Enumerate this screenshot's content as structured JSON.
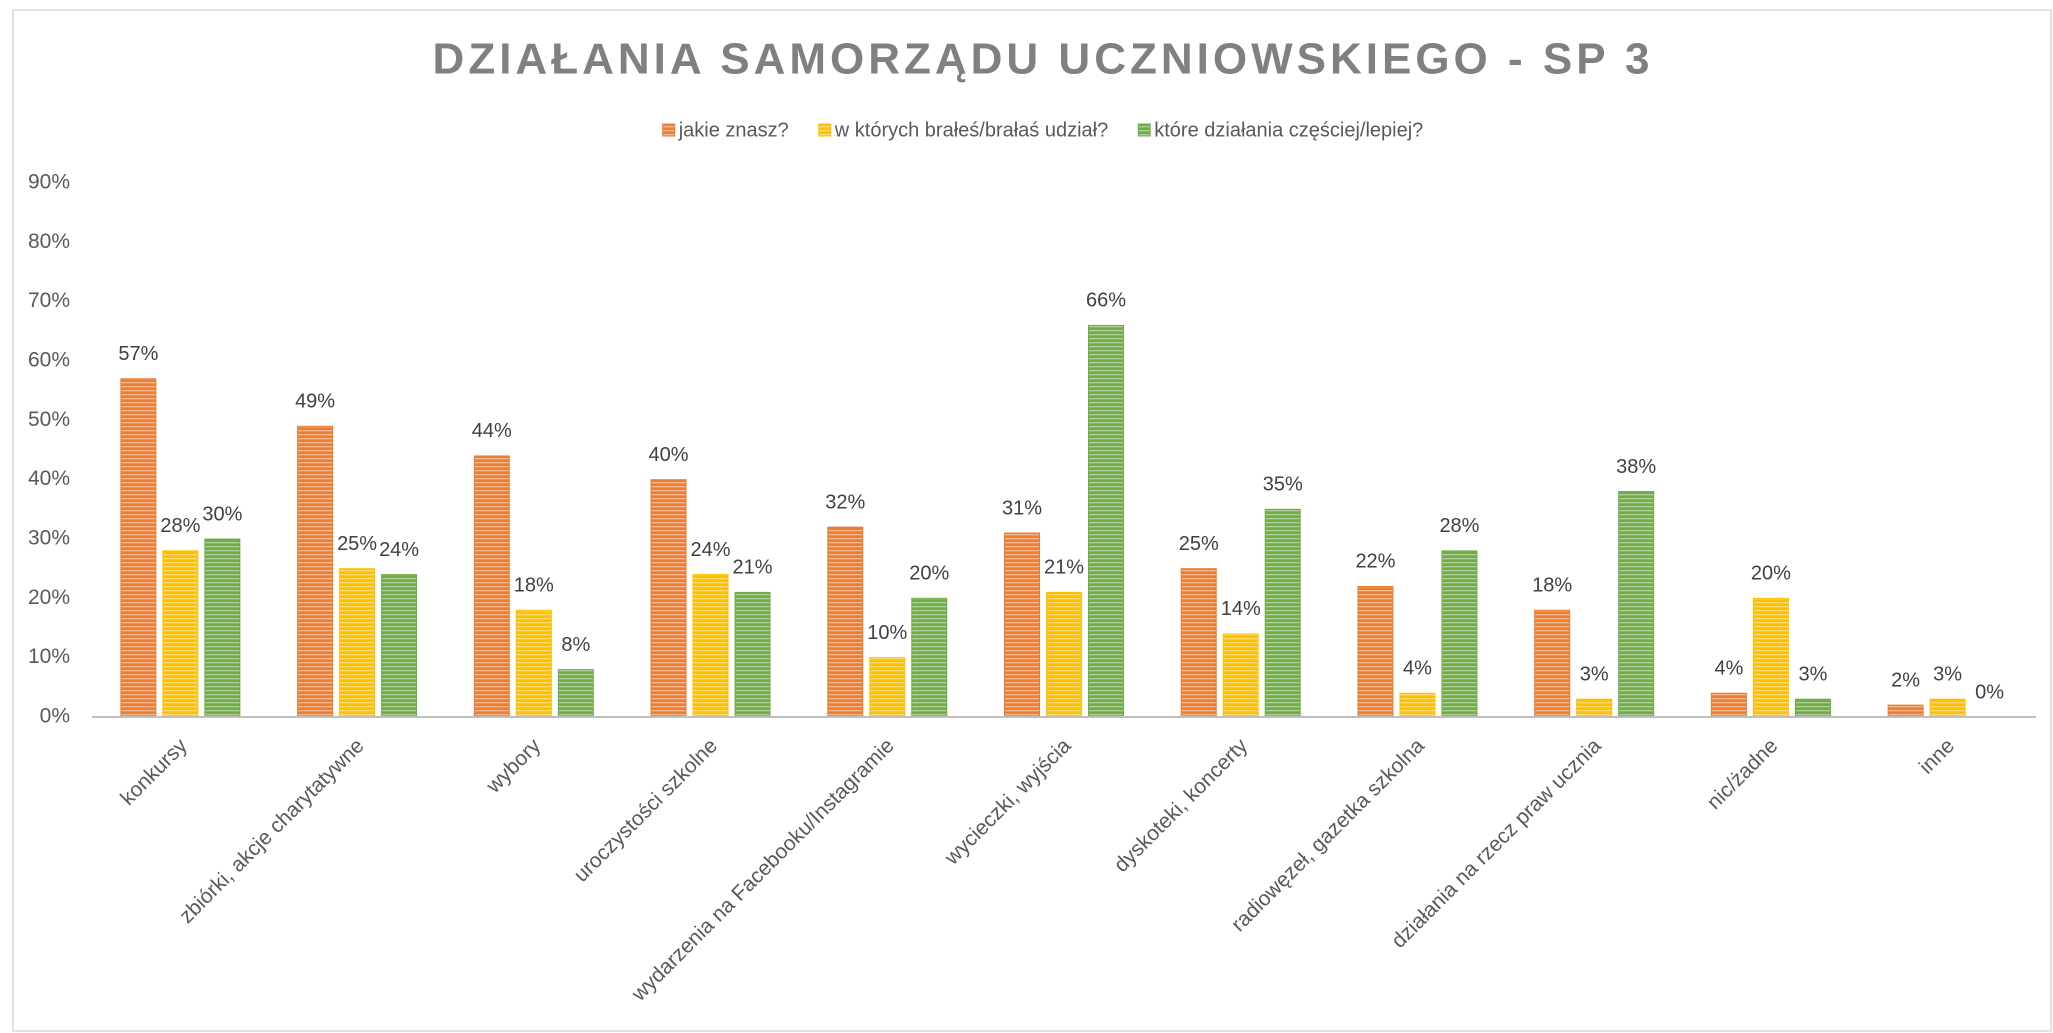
{
  "chart_data": {
    "type": "bar",
    "title": "DZIAŁANIA SAMORZĄDU UCZNIOWSKIEGO - SP 3",
    "categories": [
      "konkursy",
      "zbiórki, akcje charytatywne",
      "wybory",
      "uroczystości szkolne",
      "wydarzenia na Facebooku/Instagramie",
      "wycieczki, wyjścia",
      "dyskoteki, koncerty",
      "radiowęzeł, gazetka szkolna",
      "działania na rzecz praw ucznia",
      "nic/żadne",
      "inne"
    ],
    "series": [
      {
        "name": "jakie znasz?",
        "color": "#ed7d31",
        "values": [
          57,
          49,
          44,
          40,
          32,
          31,
          25,
          22,
          18,
          4,
          2
        ],
        "value_labels": [
          "57%",
          "49%",
          "44%",
          "40%",
          "32%",
          "31%",
          "25%",
          "22%",
          "18%",
          "4%",
          "2%"
        ]
      },
      {
        "name": "w których brałeś/brałaś udział?",
        "color": "#ffc000",
        "values": [
          28,
          25,
          18,
          24,
          10,
          21,
          14,
          4,
          3,
          20,
          3
        ],
        "value_labels": [
          "28%",
          "25%",
          "18%",
          "24%",
          "10%",
          "21%",
          "14%",
          "4%",
          "3%",
          "20%",
          "3%"
        ]
      },
      {
        "name": "które działania częściej/lepiej?",
        "color": "#70ad47",
        "values": [
          30,
          24,
          8,
          21,
          20,
          66,
          35,
          28,
          38,
          3,
          0
        ],
        "value_labels": [
          "30%",
          "24%",
          "8%",
          "21%",
          "20%",
          "66%",
          "35%",
          "28%",
          "38%",
          "3%",
          "0%"
        ]
      }
    ],
    "ylim": [
      0,
      90
    ],
    "yticks": [
      {
        "value": 0,
        "label": "0%"
      },
      {
        "value": 10,
        "label": "10%"
      },
      {
        "value": 20,
        "label": "20%"
      },
      {
        "value": 30,
        "label": "30%"
      },
      {
        "value": 40,
        "label": "40%"
      },
      {
        "value": 50,
        "label": "50%"
      },
      {
        "value": 60,
        "label": "60%"
      },
      {
        "value": 70,
        "label": "70%"
      },
      {
        "value": 80,
        "label": "80%"
      },
      {
        "value": 90,
        "label": "90%"
      }
    ],
    "grid": false,
    "legend": "top"
  }
}
